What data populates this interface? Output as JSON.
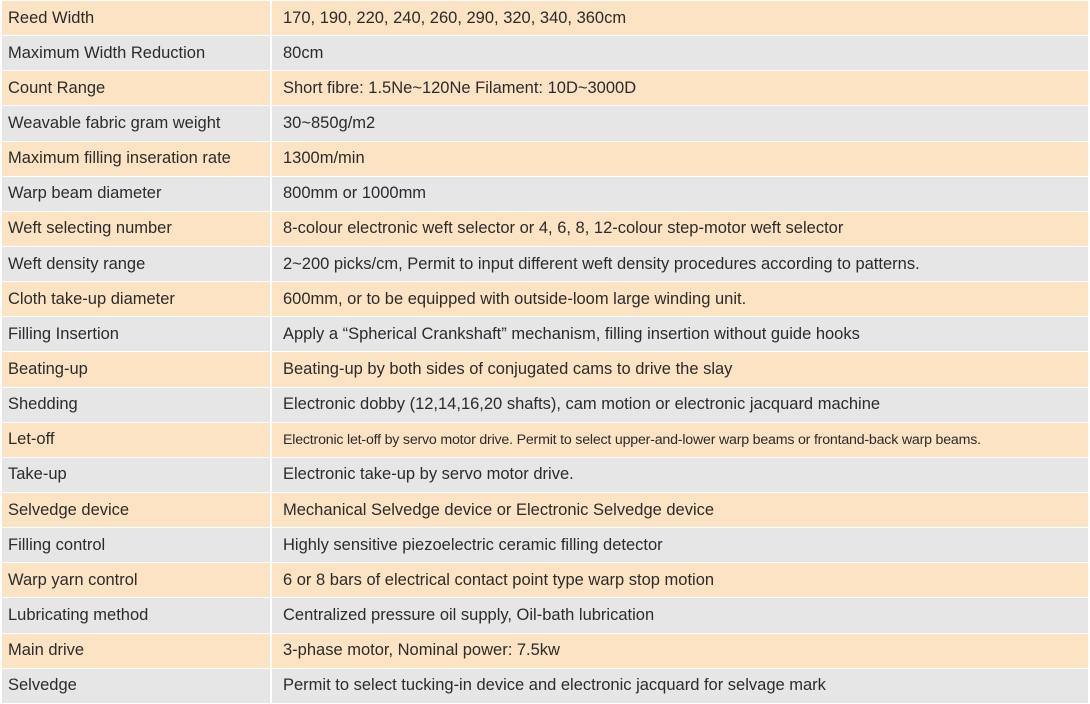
{
  "colors": {
    "odd_row": "#fce3c4",
    "even_row": "#e6e6e7"
  },
  "rows": [
    {
      "label": "Reed Width",
      "value": "170, 190, 220, 240, 260, 290, 320, 340, 360cm"
    },
    {
      "label": "Maximum Width Reduction",
      "value": "80cm"
    },
    {
      "label": "Count Range",
      "value": "Short fibre: 1.5Ne~120Ne Filament: 10D~3000D"
    },
    {
      "label": "Weavable fabric gram weight",
      "value": "30~850g/m2"
    },
    {
      "label": "Maximum filling inseration rate",
      "value": "1300m/min"
    },
    {
      "label": "Warp beam diameter",
      "value": "800mm or 1000mm"
    },
    {
      "label": "Weft selecting number",
      "value": "8-colour electronic weft selector or 4, 6, 8, 12-colour step-motor weft selector"
    },
    {
      "label": "Weft density range",
      "value": "2~200 picks/cm, Permit to input different weft density procedures according to patterns."
    },
    {
      "label": "Cloth take-up diameter",
      "value": "600mm, or to be equipped with outside-loom large winding unit."
    },
    {
      "label": "Filling Insertion",
      "value": "Apply a “Spherical Crankshaft” mechanism, filling insertion without guide hooks"
    },
    {
      "label": "Beating-up",
      "value": "Beating-up by both sides of conjugated cams to drive the slay"
    },
    {
      "label": "Shedding",
      "value": "Electronic dobby (12,14,16,20 shafts), cam motion or electronic jacquard machine"
    },
    {
      "label": "Let-off",
      "value": "Electronic let-off by servo motor drive. Permit to select upper-and-lower warp beams or frontand-back warp beams."
    },
    {
      "label": "Take-up",
      "value": "Electronic take-up by servo motor drive."
    },
    {
      "label": "Selvedge device",
      "value": "Mechanical Selvedge device or Electronic Selvedge device"
    },
    {
      "label": "Filling control",
      "value": "Highly sensitive piezoelectric ceramic filling detector"
    },
    {
      "label": "Warp yarn control",
      "value": "6 or 8 bars of electrical contact point type warp stop motion"
    },
    {
      "label": "Lubricating method",
      "value": "Centralized pressure oil supply, Oil-bath lubrication"
    },
    {
      "label": "Main drive",
      "value": "3-phase motor, Nominal power: 7.5kw"
    },
    {
      "label": "Selvedge",
      "value": "Permit to select tucking-in device and electronic jacquard for selvage mark"
    }
  ]
}
